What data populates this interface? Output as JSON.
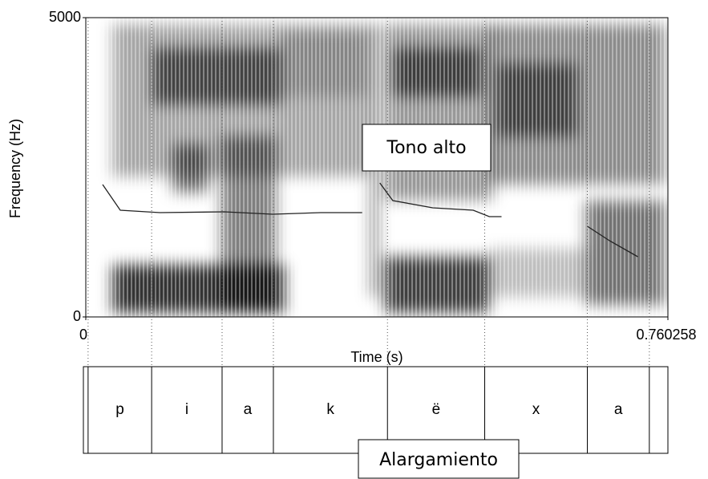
{
  "chart_data": {
    "type": "spectrogram",
    "x_label": "Time (s)",
    "y_label": "Frequency (Hz)",
    "xlim": [
      0,
      0.760258
    ],
    "ylim": [
      0,
      5000
    ],
    "xticks": [
      0,
      0.760258
    ],
    "yticks": [
      0,
      5000
    ],
    "pitch": {
      "color": "#222222",
      "x": [
        0.022,
        0.045,
        0.097,
        0.181,
        0.244,
        0.307,
        0.361,
        null,
        0.384,
        0.401,
        0.453,
        0.506,
        0.527,
        0.543,
        null,
        0.655,
        0.684,
        0.721
      ],
      "values": [
        2212,
        1783,
        1743,
        1756,
        1716,
        1743,
        1743,
        null,
        2239,
        1944,
        1823,
        1783,
        1676,
        1676,
        null,
        1515,
        1273,
        1005
      ]
    },
    "tier": {
      "boundaries": [
        0.003,
        0.086,
        0.178,
        0.245,
        0.394,
        0.521,
        0.655,
        0.736
      ],
      "labels": [
        "p",
        "i",
        "a",
        "k",
        "ë",
        "x",
        "a"
      ]
    },
    "annotations": [
      "Tono alto",
      "Alargamiento"
    ]
  }
}
